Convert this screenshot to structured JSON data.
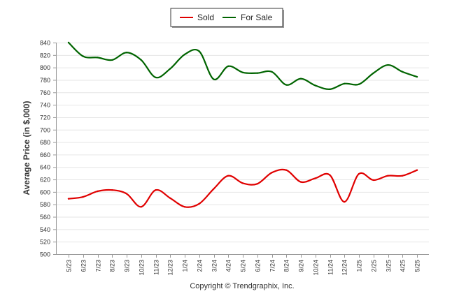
{
  "chart_data": {
    "type": "line",
    "ylabel": "Average Price (in $,000)",
    "xlabel": "",
    "ylim": [
      500,
      840
    ],
    "yticks": [
      500,
      520,
      540,
      560,
      580,
      600,
      620,
      640,
      660,
      680,
      700,
      720,
      740,
      760,
      780,
      800,
      820,
      840
    ],
    "grid": true,
    "legend_position": "top-center",
    "categories": [
      "5/23",
      "6/23",
      "7/23",
      "8/23",
      "9/23",
      "10/23",
      "11/23",
      "12/23",
      "1/24",
      "2/24",
      "3/24",
      "4/24",
      "5/24",
      "6/24",
      "7/24",
      "8/24",
      "9/24",
      "10/24",
      "11/24",
      "12/24",
      "1/25",
      "2/25",
      "3/25",
      "4/25",
      "5/25"
    ],
    "series": [
      {
        "name": "Sold",
        "color": "#e00000",
        "values": [
          589,
          592,
          601,
          603,
          597,
          576,
          603,
          590,
          576,
          581,
          605,
          626,
          614,
          613,
          631,
          635,
          616,
          622,
          627,
          584,
          629,
          619,
          626,
          626,
          635
        ]
      },
      {
        "name": "For Sale",
        "color": "#006400",
        "values": [
          840,
          818,
          816,
          812,
          824,
          812,
          784,
          798,
          821,
          826,
          781,
          802,
          792,
          791,
          793,
          772,
          782,
          771,
          765,
          774,
          773,
          791,
          804,
          793,
          785
        ]
      }
    ]
  },
  "footer": {
    "copyright": "Copyright © Trendgraphix, Inc."
  }
}
